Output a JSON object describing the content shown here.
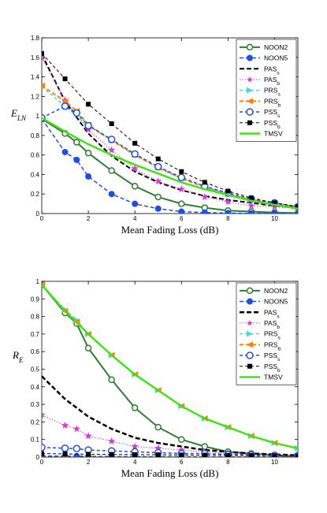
{
  "chart_data": [
    {
      "type": "line",
      "title": "",
      "xlabel": "Mean Fading Loss (dB)",
      "ylabel": "E",
      "ylabel_sub": "LN",
      "xlim": [
        0,
        11
      ],
      "ylim": [
        0,
        1.8
      ],
      "xticks": [
        0,
        2,
        4,
        6,
        8,
        10
      ],
      "yticks": [
        0,
        0.2,
        0.4,
        0.6,
        0.8,
        1.0,
        1.2,
        1.4,
        1.6,
        1.8
      ],
      "ytick_labels": [
        "0",
        "0.2",
        "0.4",
        "0.6",
        "0.8",
        "1",
        "1.2",
        "1.4",
        "1.6",
        "1.8"
      ],
      "legend_position": "top-right",
      "series": [
        {
          "name": "NOON2",
          "subscript": "",
          "color": "#2e7d32",
          "dash": "",
          "width": 2,
          "marker": "circle-open",
          "markersize": 3.5,
          "x": [
            0,
            1,
            1.5,
            2,
            3,
            4,
            5,
            6,
            7,
            8,
            9,
            10,
            11
          ],
          "y": [
            0.97,
            0.82,
            0.73,
            0.62,
            0.44,
            0.28,
            0.17,
            0.1,
            0.06,
            0.03,
            0.02,
            0.01,
            0.005
          ]
        },
        {
          "name": "NOON5",
          "subscript": "",
          "color": "#1f4fe0",
          "dash": "5,3",
          "width": 1.5,
          "marker": "circle-filled",
          "markersize": 3.5,
          "x": [
            0,
            1,
            1.5,
            2,
            3,
            4,
            5,
            6,
            7,
            8,
            9,
            10,
            11
          ],
          "y": [
            0.97,
            0.63,
            0.55,
            0.38,
            0.2,
            0.1,
            0.05,
            0.02,
            0.01,
            0.005,
            0.002,
            0.001,
            0.0
          ]
        },
        {
          "name": "PAS",
          "subscript": "s",
          "color": "#000000",
          "dash": "6,3",
          "width": 2,
          "marker": "none",
          "markersize": 0,
          "x": [
            0,
            1,
            2,
            3,
            4,
            5,
            6,
            7,
            8,
            9,
            10,
            11
          ],
          "y": [
            1.63,
            1.15,
            0.82,
            0.59,
            0.43,
            0.32,
            0.24,
            0.18,
            0.14,
            0.11,
            0.08,
            0.06
          ]
        },
        {
          "name": "PAS",
          "subscript": "b",
          "color": "#d63ad6",
          "dash": "1.5,2",
          "width": 1,
          "marker": "star",
          "markersize": 5,
          "x": [
            0,
            1,
            2,
            3,
            4,
            5,
            6,
            7,
            8,
            9,
            10,
            11
          ],
          "y": [
            1.6,
            1.16,
            0.86,
            0.65,
            0.46,
            0.33,
            0.25,
            0.17,
            0.12,
            0.08,
            0.07,
            0.05
          ]
        },
        {
          "name": "PRS",
          "subscript": "s",
          "color": "#40e0d0",
          "dash": "4,3",
          "width": 1.5,
          "marker": "triangle-right",
          "markersize": 4,
          "x": [
            0,
            1,
            2,
            3,
            4,
            5,
            6,
            7,
            8,
            9,
            10,
            11
          ],
          "y": [
            1.3,
            1.1,
            0.9,
            0.75,
            0.6,
            0.47,
            0.36,
            0.27,
            0.2,
            0.14,
            0.1,
            0.07
          ]
        },
        {
          "name": "PRS",
          "subscript": "b",
          "color": "#ff7f0e",
          "dash": "5,3",
          "width": 2,
          "marker": "triangle-left",
          "markersize": 4,
          "x": [
            0,
            1,
            1.5,
            2,
            3,
            4,
            5,
            6,
            7,
            8,
            9,
            10,
            11
          ],
          "y": [
            1.31,
            1.15,
            1.05,
            0.91,
            0.75,
            0.6,
            0.47,
            0.36,
            0.27,
            0.2,
            0.14,
            0.1,
            0.07
          ]
        },
        {
          "name": "PSS",
          "subscript": "s",
          "color": "#1f4fe0",
          "dash": "4,3",
          "width": 1.5,
          "marker": "circle-open",
          "markersize": 4,
          "x": [
            0,
            1,
            1.5,
            2,
            3,
            4,
            5,
            6,
            7,
            8,
            9,
            10,
            11
          ],
          "y": [
            0.98,
            1.1,
            1.03,
            0.9,
            0.76,
            0.61,
            0.48,
            0.37,
            0.28,
            0.21,
            0.15,
            0.11,
            0.07
          ]
        },
        {
          "name": "PSS",
          "subscript": "b",
          "color": "#000000",
          "dash": "4,3",
          "width": 1,
          "marker": "square",
          "markersize": 3,
          "x": [
            0,
            1,
            2,
            3,
            4,
            5,
            6,
            7,
            8,
            9,
            10,
            11
          ],
          "y": [
            1.64,
            1.38,
            1.12,
            0.92,
            0.72,
            0.56,
            0.43,
            0.32,
            0.23,
            0.16,
            0.11,
            0.07
          ]
        },
        {
          "name": "TMSV",
          "subscript": "",
          "color": "#44e01a",
          "dash": "",
          "width": 2.5,
          "marker": "none",
          "markersize": 0,
          "x": [
            0,
            1,
            2,
            3,
            4,
            5,
            6,
            7,
            8,
            9,
            10,
            11
          ],
          "y": [
            0.98,
            0.84,
            0.71,
            0.6,
            0.5,
            0.41,
            0.32,
            0.25,
            0.19,
            0.13,
            0.09,
            0.05
          ]
        }
      ]
    },
    {
      "type": "line",
      "title": "",
      "xlabel": "Mean Fading Loss (dB)",
      "ylabel": "R",
      "ylabel_sub": "E",
      "xlim": [
        0,
        11
      ],
      "ylim": [
        0,
        1.0
      ],
      "xticks": [
        0,
        2,
        4,
        6,
        8,
        10
      ],
      "yticks": [
        0,
        0.1,
        0.2,
        0.3,
        0.4,
        0.5,
        0.6,
        0.7,
        0.8,
        0.9,
        1.0
      ],
      "ytick_labels": [
        "0",
        "0.1",
        "0.2",
        "0.3",
        "0.4",
        "0.5",
        "0.6",
        "0.7",
        "0.8",
        "0.9",
        "1"
      ],
      "legend_position": "top-right",
      "series": [
        {
          "name": "NOON2",
          "subscript": "",
          "color": "#2e7d32",
          "dash": "",
          "width": 2,
          "marker": "circle-open",
          "markersize": 3.5,
          "x": [
            0,
            1,
            1.5,
            2,
            3,
            4,
            5,
            6,
            7,
            8,
            9,
            10,
            11
          ],
          "y": [
            0.98,
            0.82,
            0.76,
            0.62,
            0.44,
            0.28,
            0.17,
            0.1,
            0.06,
            0.03,
            0.02,
            0.01,
            0.005
          ]
        },
        {
          "name": "NOON5",
          "subscript": "",
          "color": "#1f4fe0",
          "dash": "5,3",
          "width": 1.5,
          "marker": "circle-filled",
          "markersize": 3.5,
          "x": [
            0,
            1,
            1.5,
            2,
            3,
            4,
            5,
            6,
            7,
            8,
            9,
            10,
            11
          ],
          "y": [
            0.006,
            0.005,
            0.005,
            0.004,
            0.003,
            0.003,
            0.002,
            0.002,
            0.001,
            0.001,
            0.001,
            0.001,
            0.001
          ]
        },
        {
          "name": "PAS",
          "subscript": "s",
          "color": "#000000",
          "dash": "6,3",
          "width": 2.5,
          "marker": "none",
          "markersize": 0,
          "x": [
            0,
            1,
            2,
            3,
            4,
            5,
            6,
            7,
            8,
            9,
            10,
            11
          ],
          "y": [
            0.46,
            0.33,
            0.23,
            0.16,
            0.11,
            0.08,
            0.06,
            0.04,
            0.03,
            0.02,
            0.015,
            0.01
          ]
        },
        {
          "name": "PAS",
          "subscript": "b",
          "color": "#d63ad6",
          "dash": "1.5,2",
          "width": 1,
          "marker": "star",
          "markersize": 5,
          "x": [
            0,
            1,
            1.5,
            2,
            3,
            4,
            5,
            6,
            7,
            8,
            9,
            10,
            11
          ],
          "y": [
            0.24,
            0.18,
            0.16,
            0.12,
            0.09,
            0.06,
            0.05,
            0.04,
            0.03,
            0.02,
            0.015,
            0.01,
            0.01
          ]
        },
        {
          "name": "PRS",
          "subscript": "s",
          "color": "#40e0d0",
          "dash": "4,3",
          "width": 1.5,
          "marker": "triangle-right",
          "markersize": 4,
          "x": [
            0,
            1,
            1.5,
            2,
            3,
            4,
            5,
            6,
            7,
            8,
            9,
            10,
            11
          ],
          "y": [
            0.98,
            0.84,
            0.78,
            0.7,
            0.58,
            0.47,
            0.38,
            0.29,
            0.22,
            0.17,
            0.12,
            0.08,
            0.05
          ]
        },
        {
          "name": "PRS",
          "subscript": "b",
          "color": "#ff7f0e",
          "dash": "5,3",
          "width": 2,
          "marker": "triangle-left",
          "markersize": 4,
          "x": [
            0,
            1,
            1.5,
            2,
            3,
            4,
            5,
            6,
            7,
            8,
            9,
            10,
            11
          ],
          "y": [
            0.98,
            0.83,
            0.77,
            0.7,
            0.58,
            0.47,
            0.38,
            0.29,
            0.22,
            0.17,
            0.12,
            0.08,
            0.05
          ]
        },
        {
          "name": "PSS",
          "subscript": "s",
          "color": "#1f4fe0",
          "dash": "4,3",
          "width": 1.5,
          "marker": "circle-open",
          "markersize": 4,
          "x": [
            0,
            1,
            1.5,
            2,
            3,
            4,
            5,
            6,
            7,
            8,
            9,
            10,
            11
          ],
          "y": [
            0.055,
            0.05,
            0.048,
            0.04,
            0.035,
            0.03,
            0.025,
            0.02,
            0.02,
            0.015,
            0.012,
            0.01,
            0.008
          ]
        },
        {
          "name": "PSS",
          "subscript": "b",
          "color": "#000000",
          "dash": "4,3",
          "width": 1,
          "marker": "square",
          "markersize": 3,
          "x": [
            0,
            1,
            2,
            3,
            4,
            5,
            6,
            7,
            8,
            9,
            10,
            11
          ],
          "y": [
            0.02,
            0.018,
            0.016,
            0.015,
            0.014,
            0.013,
            0.012,
            0.011,
            0.01,
            0.009,
            0.008,
            0.007
          ]
        },
        {
          "name": "TMSV",
          "subscript": "",
          "color": "#44e01a",
          "dash": "",
          "width": 2.5,
          "marker": "none",
          "markersize": 0,
          "x": [
            0,
            1,
            2,
            3,
            4,
            5,
            6,
            7,
            8,
            9,
            10,
            11
          ],
          "y": [
            0.98,
            0.83,
            0.7,
            0.58,
            0.47,
            0.38,
            0.29,
            0.22,
            0.17,
            0.12,
            0.08,
            0.05
          ]
        }
      ]
    }
  ]
}
